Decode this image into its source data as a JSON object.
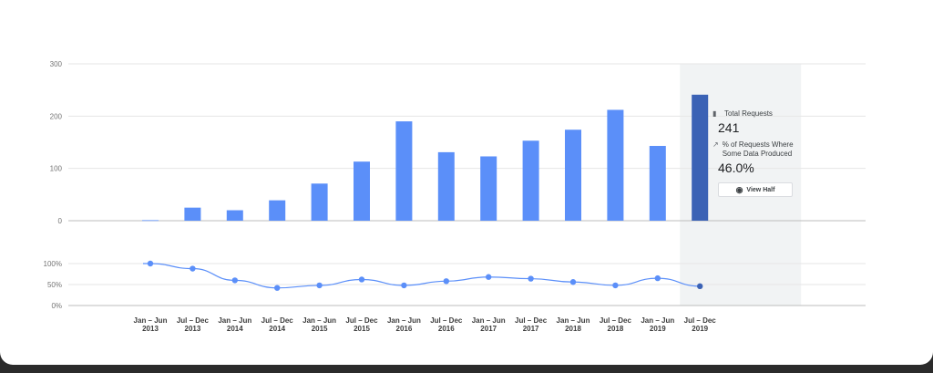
{
  "chart_data": [
    {
      "type": "bar",
      "categories": [
        [
          "Jan – Jun",
          "2013"
        ],
        [
          "Jul – Dec",
          "2013"
        ],
        [
          "Jan – Jun",
          "2014"
        ],
        [
          "Jul – Dec",
          "2014"
        ],
        [
          "Jan – Jun",
          "2015"
        ],
        [
          "Jul – Dec",
          "2015"
        ],
        [
          "Jan – Jun",
          "2016"
        ],
        [
          "Jul – Dec",
          "2016"
        ],
        [
          "Jan – Jun",
          "2017"
        ],
        [
          "Jul – Dec",
          "2017"
        ],
        [
          "Jan – Jun",
          "2018"
        ],
        [
          "Jul – Dec",
          "2018"
        ],
        [
          "Jan – Jun",
          "2019"
        ],
        [
          "Jul – Dec",
          "2019"
        ]
      ],
      "values": [
        1,
        25,
        20,
        39,
        71,
        113,
        190,
        131,
        123,
        153,
        174,
        212,
        143,
        241
      ],
      "highlighted_index": 13,
      "ylim": [
        0,
        300
      ],
      "yticks": [
        "0",
        "100",
        "200",
        "300"
      ],
      "grid": true,
      "colors": {
        "bar": "#5b8ff9",
        "bar_highlight": "#3b62b5"
      }
    },
    {
      "type": "line",
      "values": [
        100,
        88,
        60,
        42,
        48,
        62,
        48,
        58,
        68,
        64,
        56,
        48,
        65,
        46
      ],
      "ylim": [
        0,
        100
      ],
      "yticks": [
        "0%",
        "50%",
        "100%"
      ],
      "grid": true,
      "colors": {
        "line": "#5b8ff9",
        "highlight_point": "#3b62b5"
      }
    }
  ],
  "tooltip": {
    "total_label": "Total Requests",
    "total_value": "241",
    "pct_label": "% of Requests Where Some Data Produced",
    "pct_value": "46.0%",
    "button_label": "View Half"
  }
}
